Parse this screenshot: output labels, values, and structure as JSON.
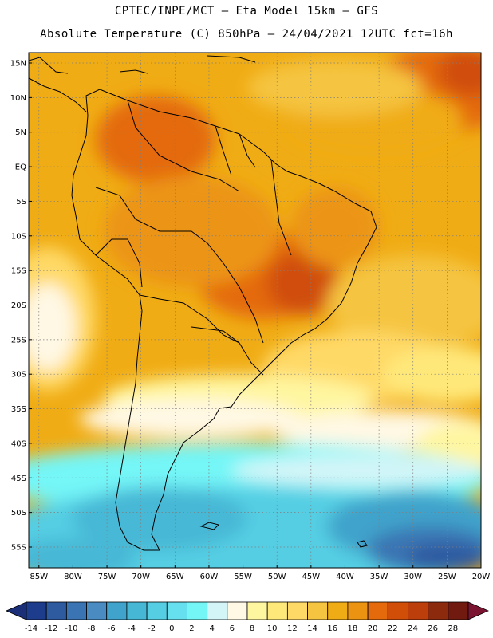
{
  "header": {
    "line1": "CPTEC/INPE/MCT –  Eta Model 15km – GFS",
    "line2": "Absolute Temperature (C) 850hPa – 24/04/2021 12UTC fct=16h"
  },
  "map": {
    "lat_labels": [
      "15N",
      "10N",
      "5N",
      "EQ",
      "5S",
      "10S",
      "15S",
      "20S",
      "25S",
      "30S",
      "35S",
      "40S",
      "45S",
      "50S",
      "55S"
    ],
    "lat_values": [
      15,
      10,
      5,
      0,
      -5,
      -10,
      -15,
      -20,
      -25,
      -30,
      -35,
      -40,
      -45,
      -50,
      -55
    ],
    "lon_labels": [
      "85W",
      "80W",
      "75W",
      "70W",
      "65W",
      "60W",
      "55W",
      "50W",
      "45W",
      "40W",
      "35W",
      "30W",
      "25W",
      "20W"
    ],
    "lon_values": [
      -85,
      -80,
      -75,
      -70,
      -65,
      -60,
      -55,
      -50,
      -45,
      -40,
      -35,
      -30,
      -25,
      -20
    ],
    "lat_range": [
      -58,
      16.5
    ],
    "lon_range": [
      -86.5,
      -20
    ]
  },
  "colorbar": {
    "labels": [
      "-14",
      "-12",
      "-10",
      "-8",
      "-6",
      "-4",
      "-2",
      "0",
      "2",
      "4",
      "6",
      "8",
      "10",
      "12",
      "14",
      "16",
      "18",
      "20",
      "22",
      "24",
      "26",
      "28"
    ],
    "colors": [
      "#1d3c8c",
      "#2e5aa0",
      "#3b74b3",
      "#4a8bc2",
      "#3fa3cb",
      "#46b8d6",
      "#55cee3",
      "#66e0ee",
      "#74f6f7",
      "#d3f5f8",
      "#fff8e4",
      "#fff6a0",
      "#ffe87a",
      "#ffd966",
      "#f5c441",
      "#f0ac14",
      "#ec9412",
      "#e46a0b",
      "#d04e08",
      "#bc3e0a",
      "#8c2a0d",
      "#701a10"
    ]
  }
}
